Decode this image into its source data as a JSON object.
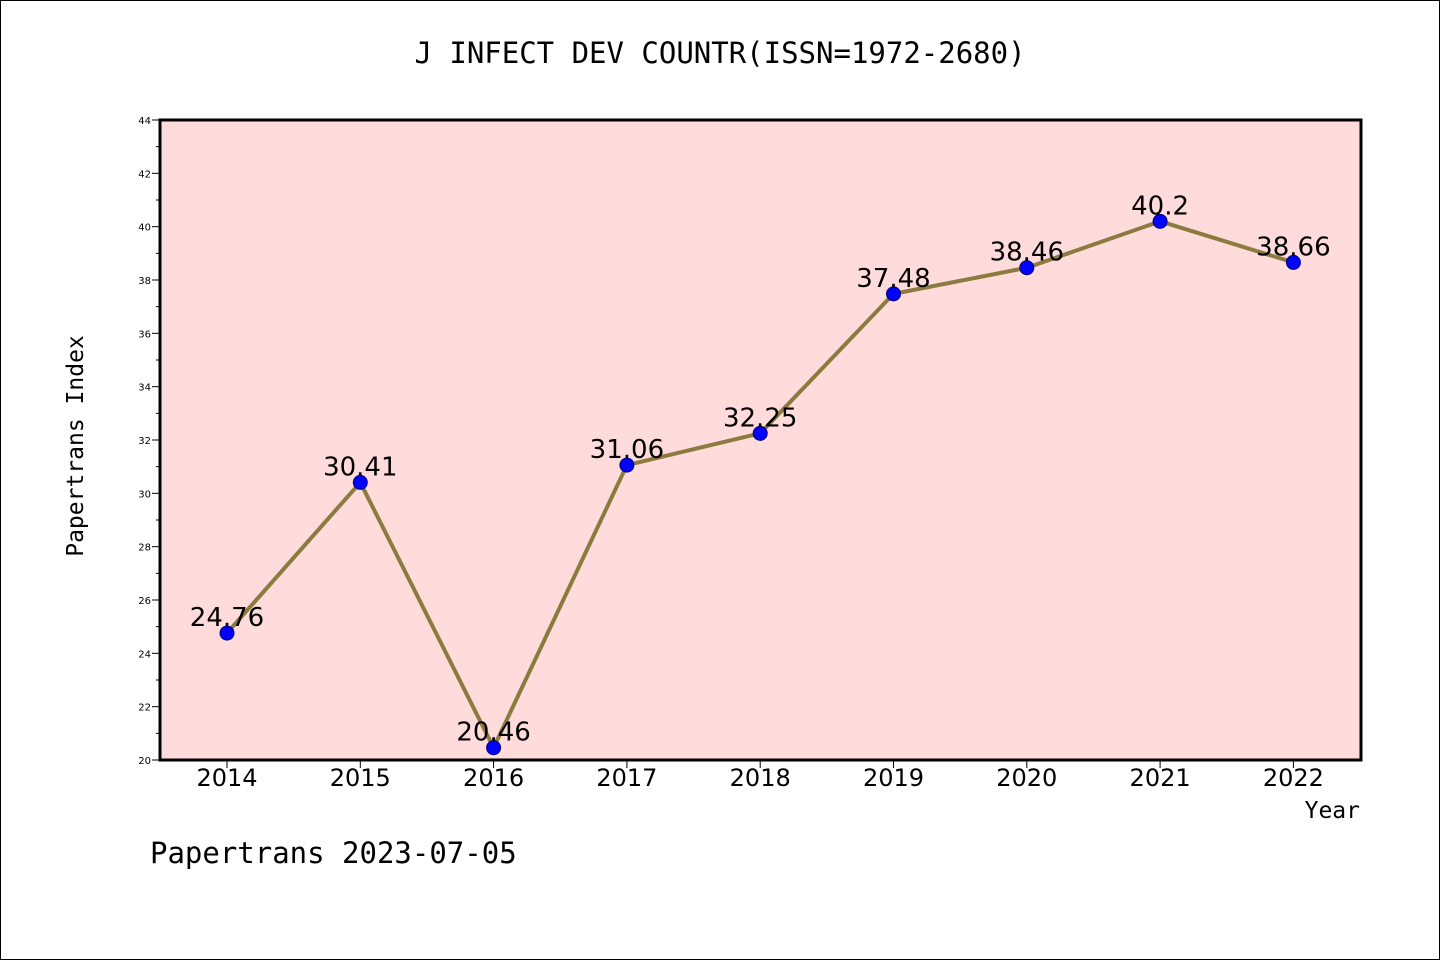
{
  "chart_data": {
    "type": "line",
    "title": "J INFECT DEV COUNTR(ISSN=1972-2680)",
    "xlabel": "Year",
    "ylabel": "Papertrans Index",
    "categories": [
      "2014",
      "2015",
      "2016",
      "2017",
      "2018",
      "2019",
      "2020",
      "2021",
      "2022"
    ],
    "series": [
      {
        "values": [
          24.76,
          30.41,
          20.46,
          31.06,
          32.25,
          37.48,
          38.46,
          40.2,
          38.66
        ],
        "labels": [
          "24.76",
          "30.41",
          "20.46",
          "31.06",
          "32.25",
          "37.48",
          "38.46",
          "40.2",
          "38.66"
        ]
      }
    ],
    "ylim": [
      20,
      44
    ],
    "yticks": [
      "20",
      "22",
      "24",
      "26",
      "28",
      "30",
      "32",
      "34",
      "36",
      "38",
      "40",
      "42",
      "44"
    ],
    "grid": false,
    "colors": {
      "plot_background": "#ffdcdb",
      "line": "#8c7b3e",
      "marker": "#0000ff"
    }
  },
  "footer": "Papertrans 2023-07-05"
}
